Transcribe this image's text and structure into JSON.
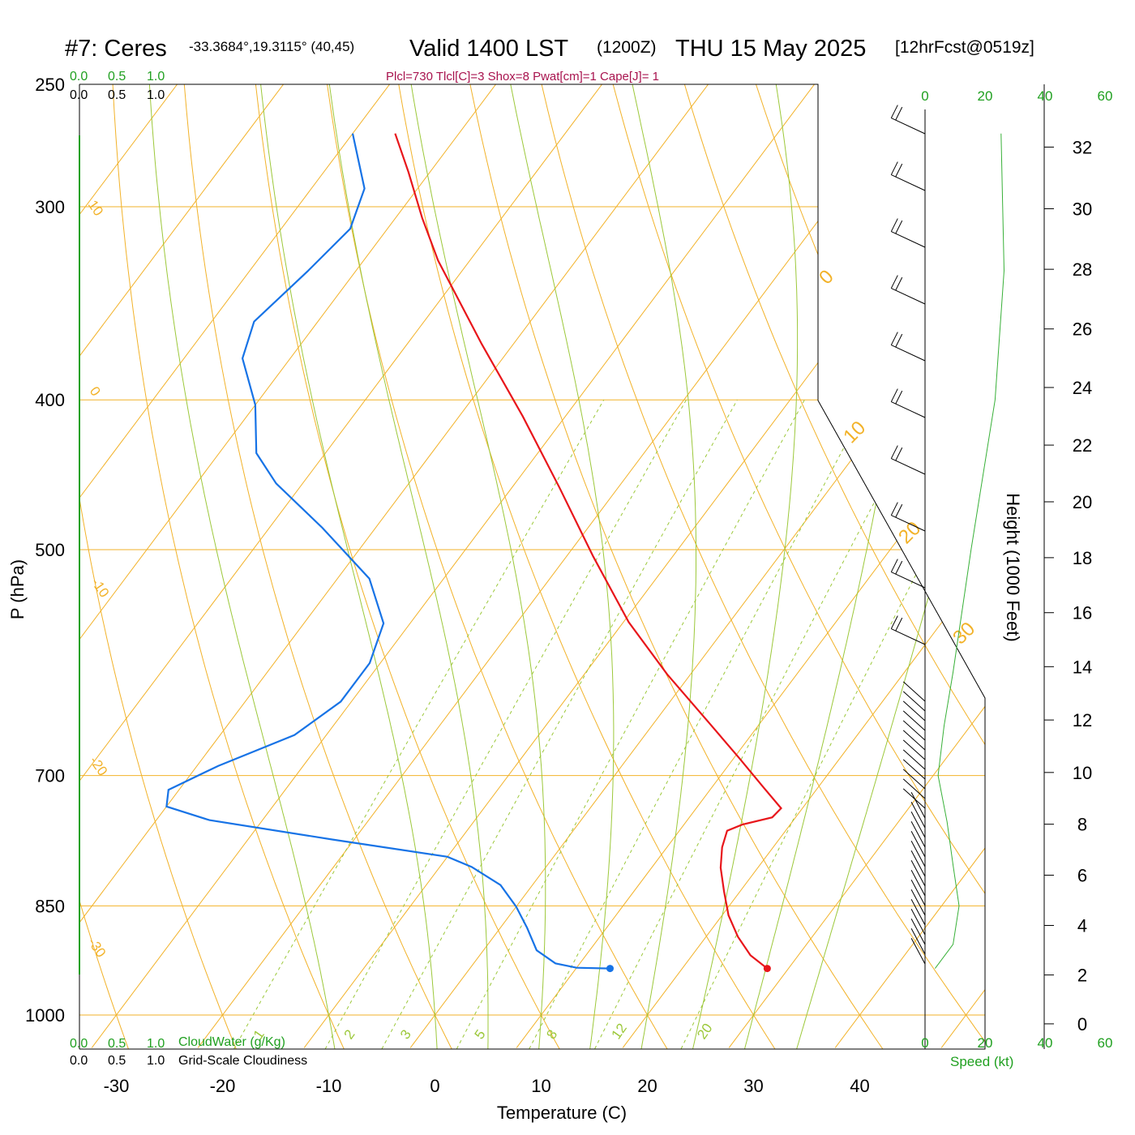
{
  "header": {
    "station_id": "#7: Ceres",
    "station_coords": "-33.3684°,19.3115° (40,45)",
    "valid_main": "Valid 1400 LST",
    "valid_utc": "(1200Z)",
    "valid_date": "THU 15 May 2025",
    "forecast": "[12hrFcst@0519z]",
    "indices": "Plcl=730 Tlcl[C]=3 Shox=8 Pwat[cm]=1 Cape[J]= 1"
  },
  "colors": {
    "temperature": "#e8161b",
    "dewpoint": "#1773e6",
    "isotherm_adiabat": "#f2b229",
    "moist_adiabat": "#9cc83a",
    "green_text": "#20a020",
    "indices_text": "#a8134e",
    "wind_speed": "#38b038"
  },
  "cloud_scale": {
    "ticks": [
      "0.0",
      "0.5",
      "1.0"
    ],
    "cloudwater_label": "CloudWater (g/Kg)",
    "cloudiness_label": "Grid-Scale Cloudiness"
  },
  "chart_data": {
    "type": "line",
    "subtype": "skew-T log-P sounding",
    "xlabel": "Temperature (C)",
    "ylabel": "P (hPa)",
    "y2label": "Height (1000 Feet)",
    "x_ticks": [
      "-30",
      "-20",
      "-10",
      "0",
      "10",
      "20",
      "30",
      "40"
    ],
    "y_ticks": [
      "250",
      "300",
      "400",
      "500",
      "700",
      "850",
      "1000"
    ],
    "height_ticks": [
      "0",
      "2",
      "4",
      "6",
      "8",
      "10",
      "12",
      "14",
      "16",
      "18",
      "20",
      "22",
      "24",
      "26",
      "28",
      "30",
      "32"
    ],
    "speed_ticks": [
      "0",
      "20",
      "40",
      "60"
    ],
    "speed_label": "Speed (kt)",
    "mixing_ratio_labels": [
      "1",
      "2",
      "3",
      "5",
      "8",
      "12",
      "20"
    ],
    "adiabat_labels_left": [
      "10",
      "0",
      "-10",
      "-20",
      "-30"
    ],
    "adiabat_labels_right": [
      "0",
      "10",
      "20",
      "30"
    ],
    "series": [
      {
        "name": "Temperature",
        "points": [
          {
            "p": 933,
            "t": 28.0
          },
          {
            "p": 915,
            "t": 25.5
          },
          {
            "p": 890,
            "t": 23.0
          },
          {
            "p": 862,
            "t": 20.6
          },
          {
            "p": 832,
            "t": 18.5
          },
          {
            "p": 803,
            "t": 16.5
          },
          {
            "p": 779,
            "t": 15.2
          },
          {
            "p": 760,
            "t": 14.5
          },
          {
            "p": 753,
            "t": 15.5
          },
          {
            "p": 745,
            "t": 17.8
          },
          {
            "p": 735,
            "t": 18.0
          },
          {
            "p": 712,
            "t": 14.8
          },
          {
            "p": 682,
            "t": 10.5
          },
          {
            "p": 646,
            "t": 5.0
          },
          {
            "p": 602,
            "t": -2.2
          },
          {
            "p": 557,
            "t": -9.5
          },
          {
            "p": 505,
            "t": -17.5
          },
          {
            "p": 456,
            "t": -25.5
          },
          {
            "p": 410,
            "t": -34.0
          },
          {
            "p": 368,
            "t": -43.0
          },
          {
            "p": 325,
            "t": -53.0
          },
          {
            "p": 305,
            "t": -57.5
          },
          {
            "p": 285,
            "t": -62.0
          },
          {
            "p": 269,
            "t": -66.0
          }
        ]
      },
      {
        "name": "Dewpoint",
        "points": [
          {
            "p": 933,
            "t": 13.2
          },
          {
            "p": 932,
            "t": 10.0
          },
          {
            "p": 926,
            "t": 7.7
          },
          {
            "p": 908,
            "t": 5.0
          },
          {
            "p": 878,
            "t": 2.5
          },
          {
            "p": 851,
            "t": 0.0
          },
          {
            "p": 824,
            "t": -3.0
          },
          {
            "p": 802,
            "t": -7.0
          },
          {
            "p": 790,
            "t": -10.0
          },
          {
            "p": 770,
            "t": -22.0
          },
          {
            "p": 748,
            "t": -35.0
          },
          {
            "p": 733,
            "t": -40.0
          },
          {
            "p": 715,
            "t": -41.0
          },
          {
            "p": 690,
            "t": -38.0
          },
          {
            "p": 659,
            "t": -33.0
          },
          {
            "p": 627,
            "t": -31.0
          },
          {
            "p": 592,
            "t": -31.0
          },
          {
            "p": 558,
            "t": -32.5
          },
          {
            "p": 522,
            "t": -37.0
          },
          {
            "p": 484,
            "t": -45.0
          },
          {
            "p": 453,
            "t": -52.5
          },
          {
            "p": 433,
            "t": -56.5
          },
          {
            "p": 403,
            "t": -60.0
          },
          {
            "p": 376,
            "t": -64.5
          },
          {
            "p": 356,
            "t": -66.0
          },
          {
            "p": 330,
            "t": -64.5
          },
          {
            "p": 310,
            "t": -63.5
          },
          {
            "p": 292,
            "t": -65.0
          },
          {
            "p": 269,
            "t": -70.0
          }
        ]
      }
    ],
    "wind_speed_profile": [
      {
        "p": 933,
        "kt": 2
      },
      {
        "p": 900,
        "kt": 8
      },
      {
        "p": 850,
        "kt": 10
      },
      {
        "p": 800,
        "kt": 8
      },
      {
        "p": 750,
        "kt": 6
      },
      {
        "p": 700,
        "kt": 3
      },
      {
        "p": 650,
        "kt": 5
      },
      {
        "p": 600,
        "kt": 8
      },
      {
        "p": 500,
        "kt": 14
      },
      {
        "p": 400,
        "kt": 22
      },
      {
        "p": 330,
        "kt": 25
      },
      {
        "p": 269,
        "kt": 24
      }
    ]
  }
}
